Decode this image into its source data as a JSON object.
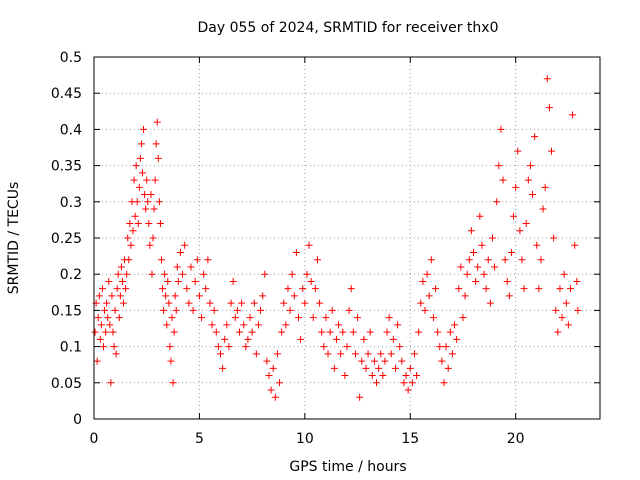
{
  "chart_data": {
    "type": "scatter",
    "title": "Day 055 of 2024, SRMTID for receiver thx0",
    "xlabel": "GPS time / hours",
    "ylabel": "SRMTID / TECUs",
    "xlim": [
      0,
      24
    ],
    "ylim": [
      0,
      0.5
    ],
    "xticks": [
      0,
      5,
      10,
      15,
      20
    ],
    "yticks": [
      0,
      0.05,
      0.1,
      0.15,
      0.2,
      0.25,
      0.3,
      0.35,
      0.4,
      0.45,
      0.5
    ],
    "xtick_labels": [
      "0",
      "5",
      "10",
      "15",
      "20"
    ],
    "ytick_labels": [
      "0",
      "0.05",
      "0.1",
      "0.15",
      "0.2",
      "0.25",
      "0.3",
      "0.35",
      "0.4",
      "0.45",
      "0.5"
    ],
    "grid": true,
    "marker": "+",
    "color": "#ff0000",
    "series": [
      {
        "points": [
          [
            0.05,
            0.12
          ],
          [
            0.1,
            0.16
          ],
          [
            0.15,
            0.08
          ],
          [
            0.2,
            0.14
          ],
          [
            0.25,
            0.17
          ],
          [
            0.3,
            0.11
          ],
          [
            0.35,
            0.13
          ],
          [
            0.4,
            0.18
          ],
          [
            0.45,
            0.1
          ],
          [
            0.5,
            0.15
          ],
          [
            0.55,
            0.12
          ],
          [
            0.6,
            0.16
          ],
          [
            0.65,
            0.14
          ],
          [
            0.7,
            0.19
          ],
          [
            0.75,
            0.13
          ],
          [
            0.8,
            0.05
          ],
          [
            0.85,
            0.17
          ],
          [
            0.9,
            0.12
          ],
          [
            0.95,
            0.1
          ],
          [
            1.0,
            0.15
          ],
          [
            1.05,
            0.09
          ],
          [
            1.1,
            0.18
          ],
          [
            1.15,
            0.2
          ],
          [
            1.2,
            0.14
          ],
          [
            1.25,
            0.17
          ],
          [
            1.3,
            0.21
          ],
          [
            1.35,
            0.19
          ],
          [
            1.4,
            0.16
          ],
          [
            1.45,
            0.22
          ],
          [
            1.5,
            0.18
          ],
          [
            1.55,
            0.2
          ],
          [
            1.6,
            0.25
          ],
          [
            1.65,
            0.22
          ],
          [
            1.7,
            0.27
          ],
          [
            1.75,
            0.24
          ],
          [
            1.8,
            0.3
          ],
          [
            1.85,
            0.26
          ],
          [
            1.9,
            0.33
          ],
          [
            1.95,
            0.28
          ],
          [
            2.0,
            0.35
          ],
          [
            2.05,
            0.3
          ],
          [
            2.1,
            0.27
          ],
          [
            2.15,
            0.32
          ],
          [
            2.2,
            0.36
          ],
          [
            2.25,
            0.38
          ],
          [
            2.3,
            0.34
          ],
          [
            2.35,
            0.4
          ],
          [
            2.4,
            0.31
          ],
          [
            2.45,
            0.29
          ],
          [
            2.5,
            0.33
          ],
          [
            2.55,
            0.3
          ],
          [
            2.6,
            0.27
          ],
          [
            2.65,
            0.24
          ],
          [
            2.7,
            0.31
          ],
          [
            2.75,
            0.2
          ],
          [
            2.8,
            0.25
          ],
          [
            2.85,
            0.29
          ],
          [
            2.9,
            0.33
          ],
          [
            2.95,
            0.38
          ],
          [
            3.0,
            0.41
          ],
          [
            3.05,
            0.36
          ],
          [
            3.1,
            0.3
          ],
          [
            3.15,
            0.27
          ],
          [
            3.2,
            0.22
          ],
          [
            3.25,
            0.18
          ],
          [
            3.3,
            0.15
          ],
          [
            3.35,
            0.2
          ],
          [
            3.4,
            0.17
          ],
          [
            3.45,
            0.13
          ],
          [
            3.5,
            0.19
          ],
          [
            3.55,
            0.16
          ],
          [
            3.6,
            0.1
          ],
          [
            3.65,
            0.08
          ],
          [
            3.7,
            0.14
          ],
          [
            3.75,
            0.05
          ],
          [
            3.8,
            0.12
          ],
          [
            3.85,
            0.17
          ],
          [
            3.9,
            0.15
          ],
          [
            3.95,
            0.21
          ],
          [
            4.0,
            0.19
          ],
          [
            4.1,
            0.23
          ],
          [
            4.2,
            0.2
          ],
          [
            4.3,
            0.24
          ],
          [
            4.4,
            0.18
          ],
          [
            4.5,
            0.16
          ],
          [
            4.6,
            0.21
          ],
          [
            4.7,
            0.15
          ],
          [
            4.8,
            0.19
          ],
          [
            4.9,
            0.22
          ],
          [
            5.0,
            0.17
          ],
          [
            5.1,
            0.14
          ],
          [
            5.2,
            0.2
          ],
          [
            5.3,
            0.18
          ],
          [
            5.4,
            0.22
          ],
          [
            5.5,
            0.16
          ],
          [
            5.6,
            0.13
          ],
          [
            5.7,
            0.15
          ],
          [
            5.8,
            0.12
          ],
          [
            5.9,
            0.1
          ],
          [
            6.0,
            0.09
          ],
          [
            6.1,
            0.07
          ],
          [
            6.2,
            0.11
          ],
          [
            6.3,
            0.13
          ],
          [
            6.4,
            0.1
          ],
          [
            6.5,
            0.16
          ],
          [
            6.6,
            0.19
          ],
          [
            6.7,
            0.14
          ],
          [
            6.8,
            0.15
          ],
          [
            6.9,
            0.12
          ],
          [
            7.0,
            0.16
          ],
          [
            7.1,
            0.13
          ],
          [
            7.2,
            0.1
          ],
          [
            7.3,
            0.11
          ],
          [
            7.4,
            0.14
          ],
          [
            7.5,
            0.12
          ],
          [
            7.6,
            0.16
          ],
          [
            7.7,
            0.09
          ],
          [
            7.8,
            0.13
          ],
          [
            7.9,
            0.15
          ],
          [
            8.0,
            0.17
          ],
          [
            8.1,
            0.2
          ],
          [
            8.2,
            0.08
          ],
          [
            8.3,
            0.06
          ],
          [
            8.4,
            0.04
          ],
          [
            8.5,
            0.07
          ],
          [
            8.6,
            0.03
          ],
          [
            8.7,
            0.09
          ],
          [
            8.8,
            0.05
          ],
          [
            8.9,
            0.12
          ],
          [
            9.0,
            0.16
          ],
          [
            9.1,
            0.13
          ],
          [
            9.2,
            0.18
          ],
          [
            9.3,
            0.15
          ],
          [
            9.4,
            0.2
          ],
          [
            9.5,
            0.17
          ],
          [
            9.6,
            0.23
          ],
          [
            9.7,
            0.14
          ],
          [
            9.8,
            0.11
          ],
          [
            9.9,
            0.18
          ],
          [
            10.0,
            0.16
          ],
          [
            10.1,
            0.2
          ],
          [
            10.2,
            0.24
          ],
          [
            10.3,
            0.19
          ],
          [
            10.4,
            0.14
          ],
          [
            10.5,
            0.18
          ],
          [
            10.6,
            0.22
          ],
          [
            10.7,
            0.16
          ],
          [
            10.8,
            0.12
          ],
          [
            10.9,
            0.1
          ],
          [
            11.0,
            0.14
          ],
          [
            11.1,
            0.09
          ],
          [
            11.2,
            0.12
          ],
          [
            11.3,
            0.15
          ],
          [
            11.4,
            0.07
          ],
          [
            11.5,
            0.11
          ],
          [
            11.6,
            0.13
          ],
          [
            11.7,
            0.09
          ],
          [
            11.8,
            0.12
          ],
          [
            11.9,
            0.06
          ],
          [
            12.0,
            0.1
          ],
          [
            12.1,
            0.15
          ],
          [
            12.2,
            0.18
          ],
          [
            12.3,
            0.12
          ],
          [
            12.4,
            0.09
          ],
          [
            12.5,
            0.14
          ],
          [
            12.6,
            0.03
          ],
          [
            12.7,
            0.08
          ],
          [
            12.8,
            0.11
          ],
          [
            12.9,
            0.07
          ],
          [
            13.0,
            0.09
          ],
          [
            13.1,
            0.12
          ],
          [
            13.2,
            0.06
          ],
          [
            13.3,
            0.08
          ],
          [
            13.4,
            0.05
          ],
          [
            13.5,
            0.07
          ],
          [
            13.6,
            0.09
          ],
          [
            13.7,
            0.06
          ],
          [
            13.8,
            0.08
          ],
          [
            13.9,
            0.12
          ],
          [
            14.0,
            0.14
          ],
          [
            14.1,
            0.09
          ],
          [
            14.2,
            0.11
          ],
          [
            14.3,
            0.07
          ],
          [
            14.4,
            0.13
          ],
          [
            14.5,
            0.1
          ],
          [
            14.6,
            0.08
          ],
          [
            14.7,
            0.05
          ],
          [
            14.8,
            0.06
          ],
          [
            14.9,
            0.04
          ],
          [
            15.0,
            0.07
          ],
          [
            15.1,
            0.05
          ],
          [
            15.2,
            0.09
          ],
          [
            15.3,
            0.06
          ],
          [
            15.4,
            0.12
          ],
          [
            15.5,
            0.16
          ],
          [
            15.6,
            0.19
          ],
          [
            15.7,
            0.15
          ],
          [
            15.8,
            0.2
          ],
          [
            15.9,
            0.17
          ],
          [
            16.0,
            0.22
          ],
          [
            16.1,
            0.14
          ],
          [
            16.2,
            0.18
          ],
          [
            16.3,
            0.12
          ],
          [
            16.4,
            0.1
          ],
          [
            16.5,
            0.08
          ],
          [
            16.6,
            0.05
          ],
          [
            16.7,
            0.1
          ],
          [
            16.8,
            0.07
          ],
          [
            16.9,
            0.12
          ],
          [
            17.0,
            0.09
          ],
          [
            17.1,
            0.13
          ],
          [
            17.2,
            0.11
          ],
          [
            17.3,
            0.18
          ],
          [
            17.4,
            0.21
          ],
          [
            17.5,
            0.14
          ],
          [
            17.6,
            0.17
          ],
          [
            17.7,
            0.2
          ],
          [
            17.8,
            0.22
          ],
          [
            17.9,
            0.26
          ],
          [
            18.0,
            0.23
          ],
          [
            18.1,
            0.19
          ],
          [
            18.2,
            0.21
          ],
          [
            18.3,
            0.28
          ],
          [
            18.4,
            0.24
          ],
          [
            18.5,
            0.2
          ],
          [
            18.6,
            0.18
          ],
          [
            18.7,
            0.22
          ],
          [
            18.8,
            0.16
          ],
          [
            18.9,
            0.25
          ],
          [
            19.0,
            0.21
          ],
          [
            19.1,
            0.3
          ],
          [
            19.2,
            0.35
          ],
          [
            19.3,
            0.4
          ],
          [
            19.4,
            0.33
          ],
          [
            19.5,
            0.22
          ],
          [
            19.6,
            0.19
          ],
          [
            19.7,
            0.17
          ],
          [
            19.8,
            0.23
          ],
          [
            19.9,
            0.28
          ],
          [
            20.0,
            0.32
          ],
          [
            20.1,
            0.37
          ],
          [
            20.2,
            0.26
          ],
          [
            20.3,
            0.22
          ],
          [
            20.4,
            0.18
          ],
          [
            20.5,
            0.27
          ],
          [
            20.6,
            0.33
          ],
          [
            20.7,
            0.35
          ],
          [
            20.8,
            0.31
          ],
          [
            20.9,
            0.39
          ],
          [
            21.0,
            0.24
          ],
          [
            21.1,
            0.18
          ],
          [
            21.2,
            0.22
          ],
          [
            21.3,
            0.29
          ],
          [
            21.4,
            0.32
          ],
          [
            21.5,
            0.47
          ],
          [
            21.6,
            0.43
          ],
          [
            21.7,
            0.37
          ],
          [
            21.8,
            0.25
          ],
          [
            21.9,
            0.15
          ],
          [
            22.0,
            0.12
          ],
          [
            22.1,
            0.18
          ],
          [
            22.2,
            0.14
          ],
          [
            22.3,
            0.2
          ],
          [
            22.4,
            0.16
          ],
          [
            22.5,
            0.13
          ],
          [
            22.6,
            0.18
          ],
          [
            22.7,
            0.42
          ],
          [
            22.8,
            0.24
          ],
          [
            22.9,
            0.19
          ],
          [
            22.95,
            0.15
          ]
        ]
      }
    ]
  }
}
